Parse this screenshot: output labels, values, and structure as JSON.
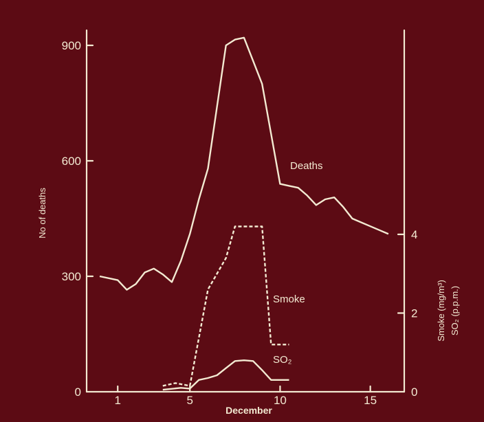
{
  "colors": {
    "background": "#5c0b14",
    "ink": "#f3ead2"
  },
  "chart_data": {
    "type": "line",
    "title": "",
    "xlabel": "December",
    "ylabel_left": "No of deaths",
    "ylabel_right_line1": "Smoke (mg/m³)",
    "ylabel_right_line2": "SO₂ (p.p.m.)",
    "x_ticks": [
      "1",
      "5",
      "10",
      "15"
    ],
    "y_left_ticks": [
      "0",
      "300",
      "600",
      "900"
    ],
    "y_right_ticks": [
      "0",
      "2",
      "4"
    ],
    "xlim": [
      0,
      16.5
    ],
    "ylim_left": [
      0,
      900
    ],
    "ylim_right": [
      0,
      4
    ],
    "grid": false,
    "series": [
      {
        "name": "Deaths",
        "axis": "left",
        "style": "solid",
        "x": [
          0,
          1,
          1.5,
          2,
          2.5,
          3,
          3.5,
          4,
          4.5,
          5,
          5.5,
          6,
          6.5,
          7,
          7.5,
          8,
          8.5,
          9,
          9.5,
          10,
          10.5,
          11,
          11.5,
          12,
          12.5,
          13,
          13.5,
          14,
          14.5,
          15,
          15.5,
          16
        ],
        "values": [
          300,
          290,
          265,
          280,
          310,
          320,
          305,
          285,
          340,
          410,
          500,
          580,
          740,
          900,
          915,
          920,
          860,
          800,
          670,
          540,
          535,
          530,
          510,
          485,
          500,
          505,
          480,
          450,
          440,
          430,
          420,
          410
        ]
      },
      {
        "name": "Smoke",
        "axis": "right",
        "style": "dashed",
        "x": [
          3.5,
          4.2,
          5,
          6,
          7,
          7.5,
          8,
          8.5,
          9,
          9.5,
          10,
          10.5
        ],
        "values": [
          0.15,
          0.22,
          0.15,
          2.6,
          3.4,
          4.2,
          4.2,
          4.2,
          4.2,
          1.2,
          1.2,
          1.2
        ]
      },
      {
        "name": "SO₂",
        "axis": "right",
        "style": "solid",
        "x": [
          3.5,
          4.5,
          5,
          5.5,
          6,
          6.5,
          7,
          7.5,
          8,
          8.5,
          9,
          9.5,
          10,
          10.5
        ],
        "values": [
          0.05,
          0.1,
          0.08,
          0.3,
          0.35,
          0.42,
          0.6,
          0.78,
          0.8,
          0.78,
          0.55,
          0.3,
          0.3,
          0.3
        ]
      }
    ],
    "annotations": {
      "deaths": "Deaths",
      "smoke": "Smoke",
      "so2": "SO₂"
    }
  }
}
